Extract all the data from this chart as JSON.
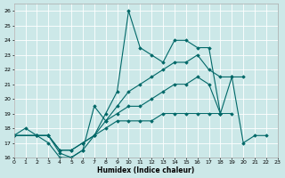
{
  "xlabel": "Humidex (Indice chaleur)",
  "xlim": [
    0,
    23
  ],
  "ylim": [
    16,
    26.5
  ],
  "yticks": [
    16,
    17,
    18,
    19,
    20,
    21,
    22,
    23,
    24,
    25,
    26
  ],
  "xticks": [
    0,
    1,
    2,
    3,
    4,
    5,
    6,
    7,
    8,
    9,
    10,
    11,
    12,
    13,
    14,
    15,
    16,
    17,
    18,
    19,
    20,
    21,
    22,
    23
  ],
  "bg_color": "#cce8e8",
  "line_color": "#006868",
  "lines": [
    {
      "x": [
        0,
        1,
        2,
        3,
        4,
        5,
        6,
        7,
        8,
        9,
        10,
        11,
        12,
        13,
        14,
        15,
        16,
        17,
        18,
        19,
        20,
        21,
        22
      ],
      "y": [
        17.5,
        18.0,
        17.5,
        17.5,
        16.3,
        16.0,
        16.5,
        17.5,
        19.0,
        20.5,
        26.0,
        23.5,
        23.0,
        22.5,
        24.0,
        24.0,
        23.5,
        23.5,
        19.0,
        21.5,
        17.0,
        17.5,
        17.5
      ]
    },
    {
      "x": [
        0,
        2,
        3,
        4,
        5,
        6,
        7,
        8,
        9,
        10,
        11,
        12,
        13,
        14,
        15,
        16,
        17,
        18,
        19,
        20
      ],
      "y": [
        17.5,
        17.5,
        17.0,
        16.0,
        16.0,
        16.5,
        19.5,
        18.5,
        19.5,
        20.5,
        21.0,
        21.5,
        22.0,
        22.5,
        22.5,
        23.0,
        22.0,
        21.5,
        21.5,
        21.5
      ]
    },
    {
      "x": [
        0,
        2,
        3,
        4,
        5,
        6,
        7,
        8,
        9,
        10,
        11,
        12,
        13,
        14,
        15,
        16,
        17,
        18
      ],
      "y": [
        17.5,
        17.5,
        17.5,
        16.5,
        16.5,
        17.0,
        17.5,
        18.5,
        19.0,
        19.5,
        19.5,
        20.0,
        20.5,
        21.0,
        21.0,
        21.5,
        21.0,
        19.0
      ]
    },
    {
      "x": [
        0,
        2,
        3,
        4,
        5,
        6,
        7,
        8,
        9,
        10,
        11,
        12,
        13,
        14,
        15,
        16,
        17,
        18,
        19
      ],
      "y": [
        17.5,
        17.5,
        17.5,
        16.5,
        16.5,
        17.0,
        17.5,
        18.0,
        18.5,
        18.5,
        18.5,
        18.5,
        19.0,
        19.0,
        19.0,
        19.0,
        19.0,
        19.0,
        19.0
      ]
    }
  ]
}
